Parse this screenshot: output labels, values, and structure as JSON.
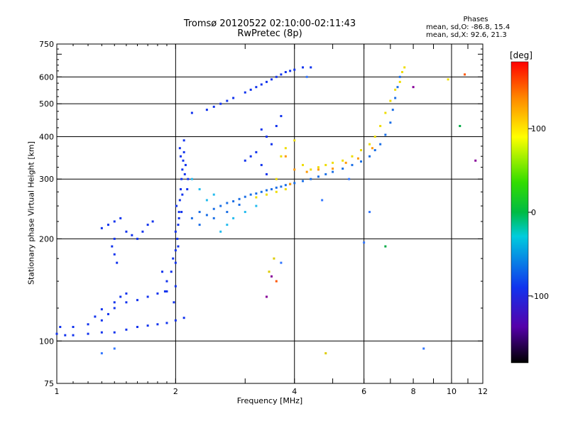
{
  "chart_data": {
    "type": "scatter",
    "title": "Tromsø 20120522 02:10:00-02:11:43",
    "subtitle": "RwPretec (8p)",
    "xlabel": "Frequency [MHz]",
    "ylabel": "Stationary phase Virtual Height [km]",
    "x_scale": "log",
    "y_scale": "log",
    "xlim": [
      1,
      12
    ],
    "ylim": [
      75,
      750
    ],
    "x_ticks": [
      1,
      2,
      4,
      6,
      8,
      10,
      12
    ],
    "y_ticks": [
      75,
      100,
      200,
      300,
      400,
      500,
      600,
      750
    ],
    "x_grid": [
      2,
      4,
      6,
      10
    ],
    "y_grid": [
      100,
      200,
      300,
      400,
      500,
      600
    ],
    "grid": true,
    "phases": {
      "header": "Phases",
      "line_o": "mean, sd,O:  -86.8, 15.4",
      "line_x": "mean, sd,X:  92.6, 21.3"
    },
    "colorbar": {
      "label": "[deg]",
      "range": [
        -180,
        180
      ],
      "ticks": [
        100,
        0,
        -100
      ],
      "tick_labels": [
        "100",
        "0",
        "-100"
      ]
    },
    "series": [
      {
        "color": "#1133ee",
        "points": [
          [
            1.0,
            105
          ],
          [
            1.05,
            104
          ],
          [
            1.1,
            104
          ],
          [
            1.2,
            105
          ],
          [
            1.3,
            106
          ],
          [
            1.4,
            106
          ],
          [
            1.5,
            108
          ],
          [
            1.6,
            110
          ],
          [
            1.7,
            111
          ],
          [
            1.8,
            112
          ],
          [
            1.9,
            113
          ],
          [
            2.0,
            115
          ],
          [
            2.1,
            117
          ],
          [
            1.02,
            110
          ],
          [
            1.1,
            110
          ],
          [
            1.2,
            112
          ],
          [
            1.3,
            115
          ],
          [
            1.35,
            120
          ],
          [
            1.4,
            125
          ],
          [
            1.5,
            130
          ],
          [
            1.6,
            132
          ],
          [
            1.7,
            135
          ],
          [
            1.8,
            138
          ],
          [
            1.9,
            140
          ],
          [
            2.0,
            145
          ],
          [
            1.25,
            118
          ],
          [
            1.3,
            124
          ],
          [
            1.4,
            130
          ],
          [
            1.45,
            135
          ],
          [
            1.5,
            138
          ]
        ]
      },
      {
        "color": "#1133ee",
        "points": [
          [
            1.9,
            150
          ],
          [
            1.95,
            160
          ],
          [
            2.0,
            170
          ],
          [
            2.0,
            185
          ],
          [
            2.02,
            200
          ],
          [
            2.03,
            220
          ],
          [
            2.04,
            240
          ],
          [
            2.05,
            260
          ],
          [
            2.06,
            280
          ],
          [
            2.07,
            300
          ],
          [
            2.08,
            320
          ],
          [
            2.09,
            340
          ],
          [
            2.1,
            360
          ],
          [
            2.1,
            390
          ],
          [
            2.05,
            370
          ],
          [
            2.12,
            330
          ],
          [
            2.15,
            300
          ],
          [
            1.98,
            130
          ],
          [
            1.97,
            175
          ],
          [
            2.0,
            210
          ],
          [
            2.01,
            250
          ],
          [
            2.06,
            350
          ],
          [
            1.85,
            160
          ],
          [
            1.88,
            140
          ],
          [
            2.04,
            230
          ],
          [
            2.08,
            270
          ],
          [
            2.11,
            310
          ],
          [
            2.14,
            280
          ],
          [
            2.03,
            190
          ],
          [
            2.07,
            240
          ]
        ]
      },
      {
        "color": "#1a6ee6",
        "points": [
          [
            2.2,
            230
          ],
          [
            2.3,
            240
          ],
          [
            2.4,
            235
          ],
          [
            2.5,
            245
          ],
          [
            2.6,
            250
          ],
          [
            2.7,
            255
          ],
          [
            2.8,
            258
          ],
          [
            2.9,
            262
          ],
          [
            3.0,
            266
          ],
          [
            3.1,
            270
          ],
          [
            3.2,
            272
          ],
          [
            3.3,
            275
          ],
          [
            3.4,
            278
          ],
          [
            3.5,
            280
          ],
          [
            3.6,
            283
          ],
          [
            3.7,
            285
          ],
          [
            3.8,
            288
          ],
          [
            3.9,
            290
          ],
          [
            4.0,
            292
          ],
          [
            4.2,
            296
          ],
          [
            4.4,
            300
          ],
          [
            4.6,
            305
          ],
          [
            4.8,
            310
          ],
          [
            5.0,
            315
          ],
          [
            5.3,
            322
          ],
          [
            5.6,
            330
          ],
          [
            5.9,
            338
          ],
          [
            6.2,
            350
          ],
          [
            6.4,
            365
          ],
          [
            6.6,
            380
          ],
          [
            6.8,
            405
          ],
          [
            7.0,
            440
          ],
          [
            7.1,
            480
          ],
          [
            7.2,
            520
          ],
          [
            7.3,
            560
          ],
          [
            7.4,
            600
          ],
          [
            2.3,
            220
          ],
          [
            2.5,
            230
          ],
          [
            2.7,
            240
          ],
          [
            2.9,
            252
          ]
        ]
      },
      {
        "color": "#22bbee",
        "points": [
          [
            2.6,
            210
          ],
          [
            2.7,
            220
          ],
          [
            2.8,
            230
          ],
          [
            3.0,
            240
          ],
          [
            3.2,
            250
          ],
          [
            2.4,
            260
          ],
          [
            2.5,
            270
          ],
          [
            2.3,
            280
          ],
          [
            2.2,
            300
          ]
        ]
      },
      {
        "color": "#1133ee",
        "points": [
          [
            2.2,
            470
          ],
          [
            2.4,
            480
          ],
          [
            2.6,
            500
          ],
          [
            2.8,
            520
          ],
          [
            3.0,
            540
          ],
          [
            3.2,
            560
          ],
          [
            3.4,
            580
          ],
          [
            3.6,
            600
          ],
          [
            3.8,
            620
          ],
          [
            4.0,
            630
          ],
          [
            4.2,
            640
          ],
          [
            4.4,
            640
          ],
          [
            3.5,
            590
          ],
          [
            3.7,
            610
          ],
          [
            3.9,
            625
          ],
          [
            2.5,
            490
          ],
          [
            2.7,
            510
          ],
          [
            3.1,
            550
          ],
          [
            3.3,
            570
          ]
        ]
      },
      {
        "color": "#1133ee",
        "points": [
          [
            1.3,
            215
          ],
          [
            1.35,
            220
          ],
          [
            1.4,
            225
          ],
          [
            1.45,
            230
          ],
          [
            1.5,
            210
          ],
          [
            1.55,
            205
          ],
          [
            1.6,
            200
          ],
          [
            1.65,
            210
          ],
          [
            1.7,
            220
          ],
          [
            1.75,
            225
          ],
          [
            1.38,
            190
          ],
          [
            1.4,
            180
          ],
          [
            1.42,
            170
          ],
          [
            1.4,
            200
          ]
        ]
      },
      {
        "color": "#1133ee",
        "points": [
          [
            3.0,
            340
          ],
          [
            3.1,
            350
          ],
          [
            3.2,
            360
          ],
          [
            3.3,
            330
          ],
          [
            3.4,
            310
          ],
          [
            3.5,
            380
          ],
          [
            3.6,
            430
          ],
          [
            3.7,
            460
          ],
          [
            3.3,
            420
          ],
          [
            3.4,
            400
          ]
        ]
      },
      {
        "color": "#eedd00",
        "points": [
          [
            3.2,
            265
          ],
          [
            3.4,
            270
          ],
          [
            3.6,
            275
          ],
          [
            3.8,
            280
          ],
          [
            3.6,
            300
          ],
          [
            3.7,
            350
          ],
          [
            3.8,
            370
          ],
          [
            4.0,
            390
          ],
          [
            4.2,
            330
          ],
          [
            4.4,
            320
          ],
          [
            4.6,
            325
          ],
          [
            4.8,
            330
          ],
          [
            5.0,
            335
          ],
          [
            5.3,
            340
          ],
          [
            5.6,
            350
          ],
          [
            5.9,
            365
          ],
          [
            6.2,
            380
          ],
          [
            6.4,
            400
          ],
          [
            6.6,
            430
          ],
          [
            6.8,
            470
          ],
          [
            7.0,
            510
          ],
          [
            7.2,
            550
          ],
          [
            7.4,
            580
          ],
          [
            7.5,
            620
          ],
          [
            7.6,
            640
          ],
          [
            9.8,
            590
          ]
        ]
      },
      {
        "color": "#ff9900",
        "points": [
          [
            4.3,
            315
          ],
          [
            4.6,
            320
          ],
          [
            5.0,
            322
          ],
          [
            5.4,
            335
          ],
          [
            5.8,
            345
          ],
          [
            6.3,
            370
          ],
          [
            3.9,
            290
          ],
          [
            3.8,
            350
          ],
          [
            4.0,
            320
          ]
        ]
      },
      {
        "color": "#00aa44",
        "points": [
          [
            10.5,
            430
          ],
          [
            6.8,
            190
          ]
        ]
      },
      {
        "color": "#ff5500",
        "points": [
          [
            10.8,
            610
          ],
          [
            3.6,
            150
          ]
        ]
      },
      {
        "color": "#880099",
        "points": [
          [
            3.4,
            135
          ],
          [
            3.5,
            155
          ],
          [
            11.5,
            340
          ],
          [
            8.0,
            560
          ]
        ]
      },
      {
        "color": "#3377ff",
        "points": [
          [
            1.3,
            92
          ],
          [
            1.4,
            95
          ],
          [
            8.5,
            95
          ],
          [
            4.7,
            260
          ],
          [
            6.0,
            195
          ],
          [
            6.2,
            240
          ],
          [
            5.5,
            300
          ],
          [
            4.3,
            600
          ],
          [
            3.7,
            170
          ]
        ]
      },
      {
        "color": "#ddcc00",
        "points": [
          [
            3.55,
            175
          ],
          [
            3.45,
            160
          ],
          [
            4.8,
            92
          ]
        ]
      }
    ]
  }
}
